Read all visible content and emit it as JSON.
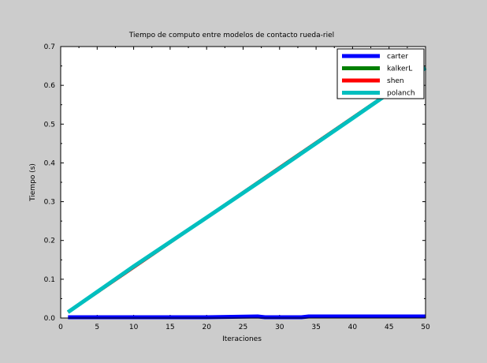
{
  "chart_data": {
    "type": "line",
    "title": "Tiempo de computo entre modelos de contacto rueda-riel",
    "xlabel": "Iteraciones",
    "ylabel": "Tiempo (s)",
    "xlim": [
      0,
      50
    ],
    "ylim": [
      0,
      0.7
    ],
    "xticks": [
      0,
      5,
      10,
      15,
      20,
      25,
      30,
      35,
      40,
      45,
      50
    ],
    "yticks": [
      0.0,
      0.1,
      0.2,
      0.3,
      0.4,
      0.5,
      0.6,
      0.7
    ],
    "xtick_labels": [
      "0",
      "5",
      "10",
      "15",
      "20",
      "25",
      "30",
      "35",
      "40",
      "45",
      "50"
    ],
    "ytick_labels": [
      "0.0",
      "0.1",
      "0.2",
      "0.3",
      "0.4",
      "0.5",
      "0.6",
      "0.7"
    ],
    "grid": false,
    "legend_position": "top-right",
    "series": [
      {
        "name": "carter",
        "color": "#0000ff",
        "x": [
          1,
          10,
          20,
          27,
          28,
          33,
          34,
          40,
          50
        ],
        "y": [
          0.002,
          0.002,
          0.002,
          0.004,
          0.002,
          0.002,
          0.004,
          0.004,
          0.004
        ]
      },
      {
        "name": "kalkerL",
        "color": "#008000",
        "x": [
          1,
          50
        ],
        "y": [
          0.015,
          0.645
        ]
      },
      {
        "name": "shen",
        "color": "#ff0000",
        "x": [
          1,
          50
        ],
        "y": [
          0.015,
          0.645
        ]
      },
      {
        "name": "polanch",
        "color": "#00bfbf",
        "x": [
          1,
          10,
          20,
          30,
          40,
          50
        ],
        "y": [
          0.015,
          0.133,
          0.259,
          0.386,
          0.515,
          0.645
        ]
      }
    ]
  }
}
